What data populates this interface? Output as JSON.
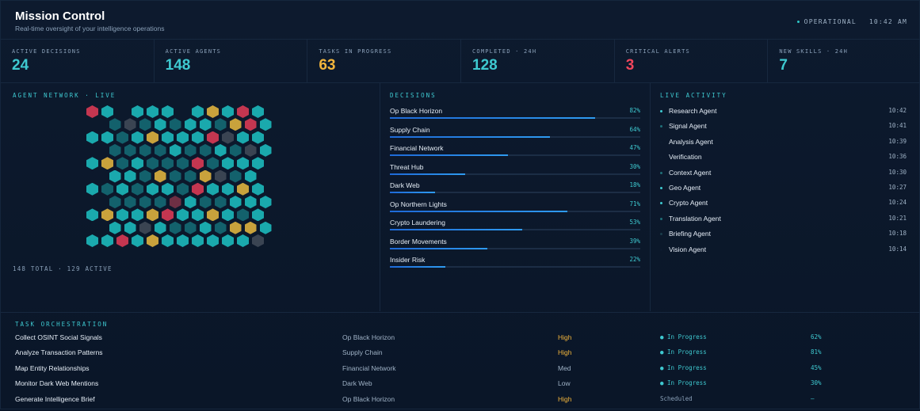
{
  "header": {
    "title": "Mission Control",
    "subtitle": "Real-time oversight of your intelligence operations",
    "status": "OPERATIONAL",
    "time": "10:42 AM"
  },
  "stats": [
    {
      "label": "ACTIVE DECISIONS",
      "value": "24",
      "color": "#3ec9d0"
    },
    {
      "label": "ACTIVE AGENTS",
      "value": "148",
      "color": "#3ec9d0"
    },
    {
      "label": "TASKS IN PROGRESS",
      "value": "63",
      "color": "#f2b53c"
    },
    {
      "label": "COMPLETED · 24H",
      "value": "128",
      "color": "#3ec9d0"
    },
    {
      "label": "CRITICAL ALERTS",
      "value": "3",
      "color": "#f0465c"
    },
    {
      "label": "NEW SKILLS · 24H",
      "value": "7",
      "color": "#3ec9d0"
    }
  ],
  "network": {
    "title": "AGENT NETWORK · LIVE",
    "summary": "148 TOTAL · 129 ACTIVE",
    "colors": {
      "a": "#1aa9ad",
      "d": "#13616c",
      "g": "#c9a23c",
      "r": "#c43650",
      "m": "#6e2f44",
      "x": "#3a4452"
    },
    "rows": [
      "ra.aaa.agara",
      ".dxdadaadgra",
      "aadagaaarxaa",
      ".ddddaddadxa",
      "agdadddrdaaa",
      ".aadgddgxda.",
      "adadaadraaga",
      ".ddddmaddaaa",
      "agaagraagada",
      ".aaxaddadgga",
      "aaragaaaaaax"
    ]
  },
  "decisions": {
    "title": "DECISIONS",
    "items": [
      {
        "name": "Op Black Horizon",
        "pct_label": "82%",
        "value": 82
      },
      {
        "name": "Supply Chain",
        "pct_label": "64%",
        "value": 64
      },
      {
        "name": "Financial Network",
        "pct_label": "47%",
        "value": 47
      },
      {
        "name": "Threat Hub",
        "pct_label": "30%",
        "value": 30
      },
      {
        "name": "Dark Web",
        "pct_label": "18%",
        "value": 18
      },
      {
        "name": "Op Northern Lights",
        "pct_label": "71%",
        "value": 71
      },
      {
        "name": "Crypto Laundering",
        "pct_label": "53%",
        "value": 53
      },
      {
        "name": "Border Movements",
        "pct_label": "39%",
        "value": 39
      },
      {
        "name": "Insider Risk",
        "pct_label": "22%",
        "value": 22
      }
    ]
  },
  "activity": {
    "title": "LIVE ACTIVITY",
    "items": [
      {
        "name": "Research Agent",
        "time": "10:42",
        "dot": "#3ec9d0"
      },
      {
        "name": "Signal Agent",
        "time": "10:41",
        "dot": "#1f6f78"
      },
      {
        "name": "Analysis Agent",
        "time": "10:39",
        "dot": "#0d1a2e"
      },
      {
        "name": "Verification",
        "time": "10:36",
        "dot": "#0d1a2e"
      },
      {
        "name": "Context Agent",
        "time": "10:30",
        "dot": "#1f6f78"
      },
      {
        "name": "Geo Agent",
        "time": "10:27",
        "dot": "#3ec9d0"
      },
      {
        "name": "Crypto Agent",
        "time": "10:24",
        "dot": "#3ec9d0"
      },
      {
        "name": "Translation Agent",
        "time": "10:21",
        "dot": "#1f6f78"
      },
      {
        "name": "Briefing Agent",
        "time": "10:18",
        "dot": "#1a3d4a"
      },
      {
        "name": "Vision Agent",
        "time": "10:14",
        "dot": "#0d1a2e"
      }
    ]
  },
  "tasks": {
    "title": "TASK ORCHESTRATION",
    "items": [
      {
        "name": "Collect OSINT Social Signals",
        "op": "Op Black Horizon",
        "priority": "High",
        "priority_color": "#f2b53c",
        "status": "● In Progress",
        "status_color": "#3ec9d0",
        "pct": "62%"
      },
      {
        "name": "Analyze Transaction Patterns",
        "op": "Supply Chain",
        "priority": "High",
        "priority_color": "#f2b53c",
        "status": "● In Progress",
        "status_color": "#3ec9d0",
        "pct": "81%"
      },
      {
        "name": "Map Entity Relationships",
        "op": "Financial Network",
        "priority": "Med",
        "priority_color": "#9fb2c6",
        "status": "● In Progress",
        "status_color": "#3ec9d0",
        "pct": "45%"
      },
      {
        "name": "Monitor Dark Web Mentions",
        "op": "Dark Web",
        "priority": "Low",
        "priority_color": "#9fb2c6",
        "status": "● In Progress",
        "status_color": "#3ec9d0",
        "pct": "30%"
      },
      {
        "name": "Generate Intelligence Brief",
        "op": "Op Black Horizon",
        "priority": "High",
        "priority_color": "#f2b53c",
        "status": "Scheduled",
        "status_color": "#8aa0b8",
        "pct": "—"
      }
    ]
  }
}
